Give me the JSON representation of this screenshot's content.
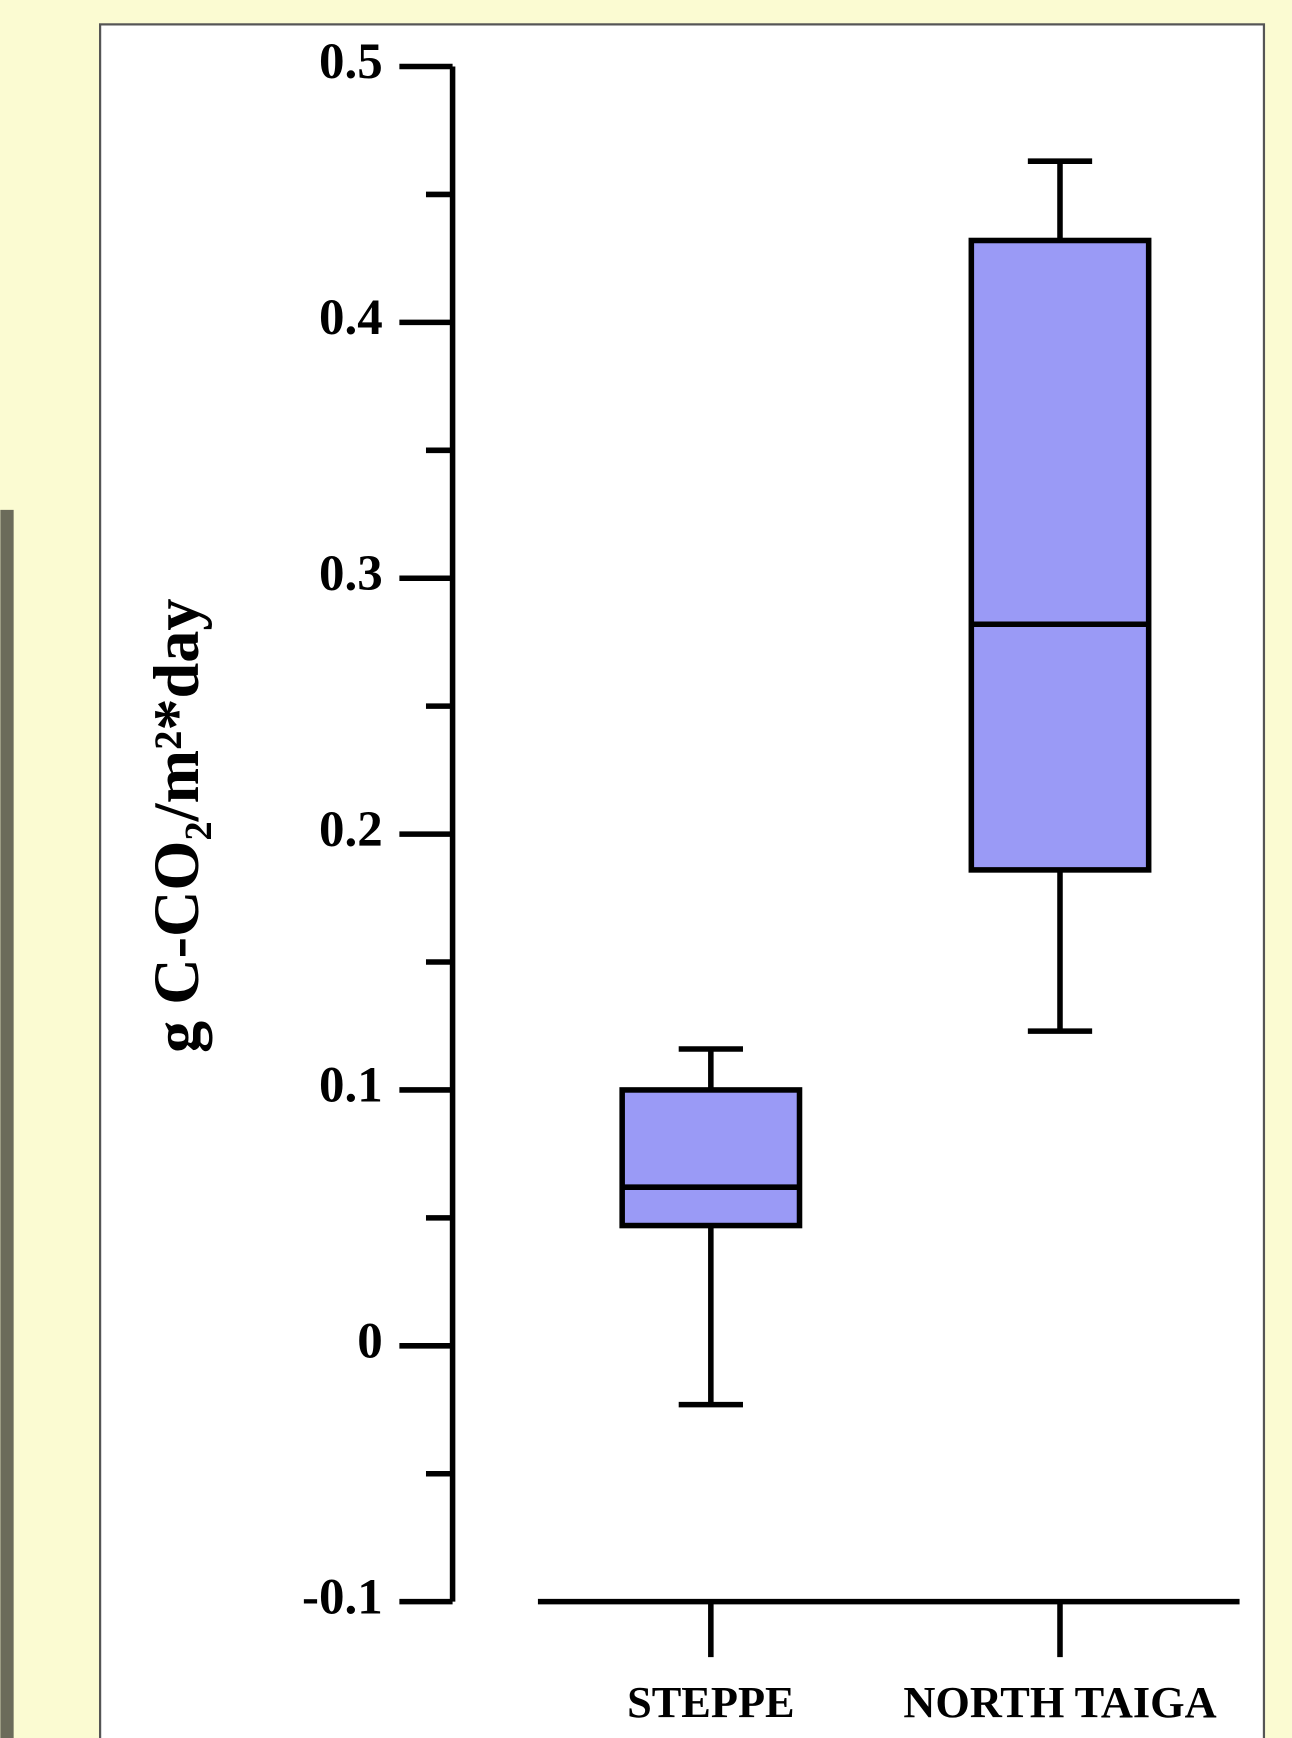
{
  "chart_data": {
    "type": "box",
    "y_label": "g C-CO₂/m²*day",
    "categories": [
      "STEPPE",
      "NORTH TAIGA"
    ],
    "boxes": [
      {
        "low": -0.023,
        "q1": 0.047,
        "median": 0.062,
        "q3": 0.1,
        "high": 0.116
      },
      {
        "low": 0.123,
        "q1": 0.186,
        "median": 0.282,
        "q3": 0.432,
        "high": 0.463
      }
    ],
    "color": "#9a9af6",
    "ylim": [
      -0.1,
      0.5
    ],
    "yticks": [
      -0.1,
      0,
      0.1,
      0.2,
      0.3,
      0.4,
      0.5
    ],
    "minor_yticks": [
      -0.05,
      0.05,
      0.15,
      0.25,
      0.35,
      0.45
    ]
  }
}
